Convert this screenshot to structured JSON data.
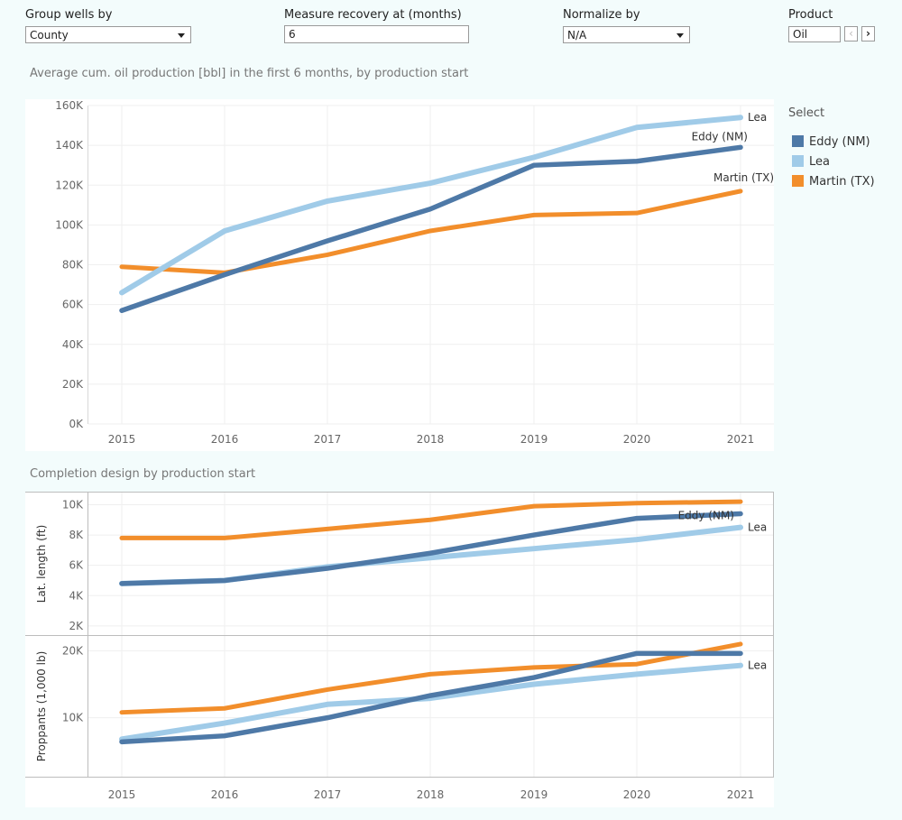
{
  "controls": {
    "group_label": "Group wells by",
    "group_value": "County",
    "measure_label": "Measure recovery at (months)",
    "measure_value": "6",
    "normalize_label": "Normalize by",
    "normalize_value": "N/A",
    "product_label": "Product",
    "product_value": "Oil",
    "prev_icon": "chevron-left-icon",
    "next_icon": "chevron-right-icon"
  },
  "legend": {
    "title": "Select",
    "items": [
      {
        "label": "Eddy (NM)",
        "color": "#4e79a7"
      },
      {
        "label": "Lea",
        "color": "#a0cbe8"
      },
      {
        "label": "Martin (TX)",
        "color": "#f28e2b"
      }
    ]
  },
  "chart_data": [
    {
      "type": "line",
      "title": "Average cum. oil production [bbl] in the first 6 months, by production start",
      "x": [
        "2015",
        "2016",
        "2017",
        "2018",
        "2019",
        "2020",
        "2021"
      ],
      "ylim": [
        0,
        160000
      ],
      "yticks": [
        "0K",
        "20K",
        "40K",
        "60K",
        "80K",
        "100K",
        "120K",
        "140K",
        "160K"
      ],
      "series": [
        {
          "name": "Eddy (NM)",
          "color": "#4e79a7",
          "values": [
            57000,
            75000,
            92000,
            108000,
            130000,
            132000,
            139000
          ],
          "label": "Eddy (NM)"
        },
        {
          "name": "Lea",
          "color": "#a0cbe8",
          "values": [
            66000,
            97000,
            112000,
            121000,
            134000,
            149000,
            154000
          ],
          "label": "Lea"
        },
        {
          "name": "Martin (TX)",
          "color": "#f28e2b",
          "values": [
            79000,
            76000,
            85000,
            97000,
            105000,
            106000,
            117000
          ],
          "label": "Martin (TX)"
        }
      ]
    },
    {
      "type": "line",
      "title": "Completion design by production start",
      "ylabel": "Lat. length (ft)",
      "x": [
        "2015",
        "2016",
        "2017",
        "2018",
        "2019",
        "2020",
        "2021"
      ],
      "ylim": [
        1400,
        10800
      ],
      "yticks": [
        "2K",
        "4K",
        "6K",
        "8K",
        "10K"
      ],
      "series": [
        {
          "name": "Eddy (NM)",
          "color": "#4e79a7",
          "values": [
            4800,
            5000,
            5800,
            6800,
            8000,
            9100,
            9400
          ],
          "label": "Eddy (NM)"
        },
        {
          "name": "Lea",
          "color": "#a0cbe8",
          "values": [
            4800,
            5000,
            5900,
            6500,
            7100,
            7700,
            8500
          ],
          "label": "Lea"
        },
        {
          "name": "Martin (TX)",
          "color": "#f28e2b",
          "values": [
            7800,
            7800,
            8400,
            9000,
            9900,
            10100,
            10200
          ],
          "label": ""
        }
      ]
    },
    {
      "type": "line",
      "ylabel": "Proppants (1,000 lb)",
      "x": [
        "2015",
        "2016",
        "2017",
        "2018",
        "2019",
        "2020",
        "2021"
      ],
      "ylim": [
        1200,
        22200
      ],
      "yticks": [
        "10K",
        "20K"
      ],
      "series": [
        {
          "name": "Eddy (NM)",
          "color": "#4e79a7",
          "values": [
            6400,
            7300,
            10000,
            13300,
            16000,
            19600,
            19600
          ],
          "label": ""
        },
        {
          "name": "Lea",
          "color": "#a0cbe8",
          "values": [
            6800,
            9200,
            12000,
            12900,
            15000,
            16500,
            17800
          ],
          "label": "Lea"
        },
        {
          "name": "Martin (TX)",
          "color": "#f28e2b",
          "values": [
            10800,
            11400,
            14200,
            16500,
            17500,
            18000,
            21000
          ],
          "label": ""
        }
      ]
    }
  ]
}
